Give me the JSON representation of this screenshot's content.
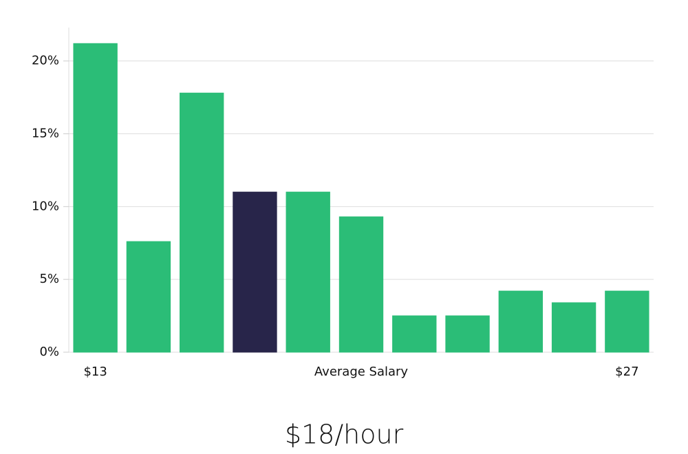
{
  "chart_data": {
    "type": "bar",
    "title": "$18/hour",
    "x_label": "Average Salary",
    "categories": [
      "$13",
      null,
      null,
      null,
      null,
      null,
      null,
      null,
      null,
      null,
      "$27"
    ],
    "values": [
      21.2,
      7.6,
      17.8,
      11.0,
      11.0,
      9.3,
      2.5,
      2.5,
      4.2,
      3.4,
      4.2
    ],
    "colors": [
      "#2bbd77",
      "#2bbd77",
      "#2bbd77",
      "#28254a",
      "#2bbd77",
      "#2bbd77",
      "#2bbd77",
      "#2bbd77",
      "#2bbd77",
      "#2bbd77",
      "#2bbd77"
    ],
    "ylim": [
      0,
      22.3
    ],
    "yticks": [
      {
        "value": 0,
        "label": "0%"
      },
      {
        "value": 5,
        "label": "5%"
      },
      {
        "value": 10,
        "label": "10%"
      },
      {
        "value": 15,
        "label": "15%"
      },
      {
        "value": 20,
        "label": "20%"
      }
    ],
    "grid": true
  }
}
